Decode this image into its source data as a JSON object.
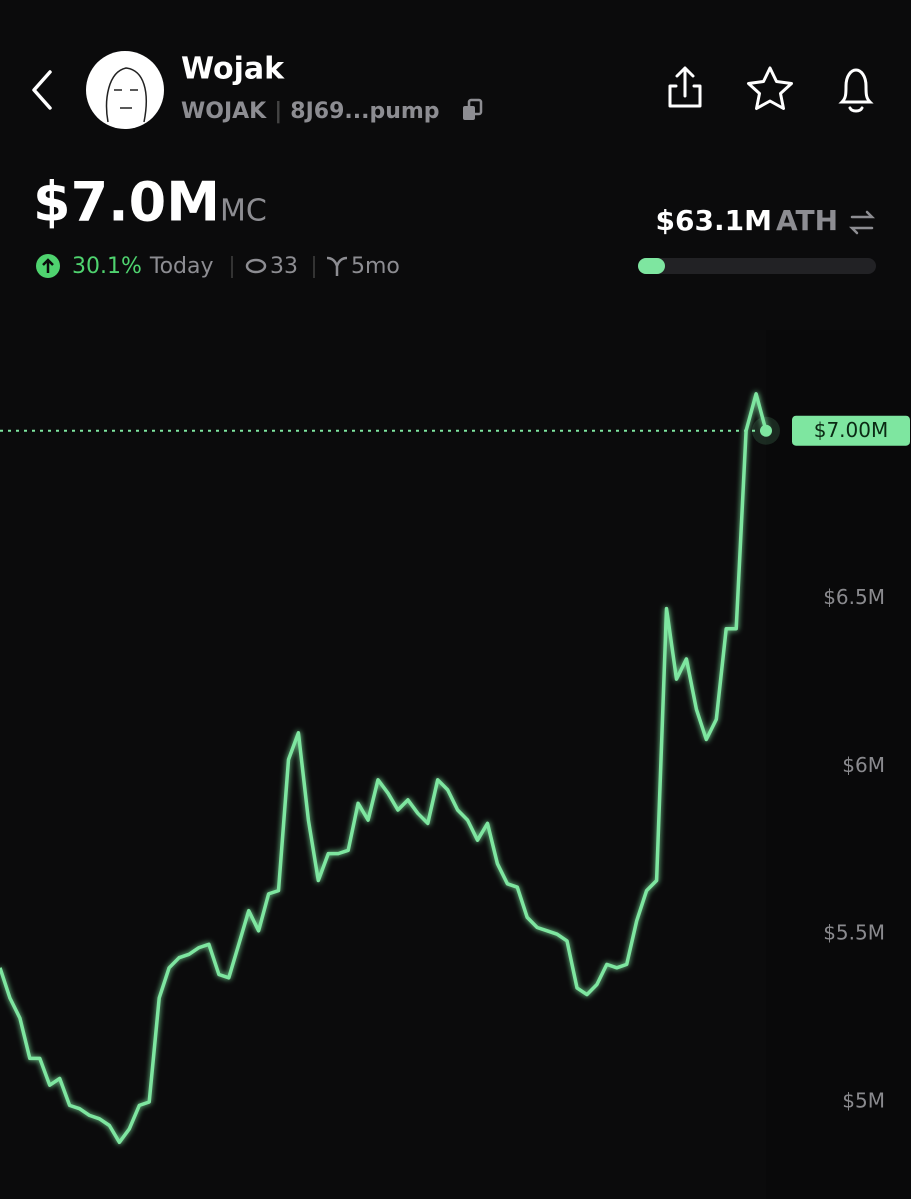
{
  "header": {
    "name": "Wojak",
    "ticker": "WOJAK",
    "separator": "|",
    "address": "8J69...pump"
  },
  "stats": {
    "market_cap": "$7.0M",
    "market_cap_unit": "MC",
    "change": "30.1%",
    "change_period": "Today",
    "watchers": "33",
    "age": "5mo",
    "ath": "$63.1M",
    "ath_label": "ATH"
  },
  "chart_data": {
    "type": "line",
    "series": [
      {
        "name": "Market cap",
        "color": "#7ee6a0",
        "values": [
          5.4,
          5.31,
          5.25,
          5.13,
          5.13,
          5.05,
          5.07,
          4.99,
          4.98,
          4.96,
          4.95,
          4.93,
          4.88,
          4.92,
          4.99,
          5.0,
          5.31,
          5.4,
          5.43,
          5.44,
          5.46,
          5.47,
          5.38,
          5.37,
          5.47,
          5.57,
          5.51,
          5.62,
          5.63,
          6.02,
          6.1,
          5.84,
          5.66,
          5.74,
          5.74,
          5.75,
          5.89,
          5.84,
          5.96,
          5.92,
          5.87,
          5.9,
          5.86,
          5.83,
          5.96,
          5.93,
          5.87,
          5.84,
          5.78,
          5.83,
          5.71,
          5.65,
          5.64,
          5.55,
          5.52,
          5.51,
          5.5,
          5.48,
          5.34,
          5.32,
          5.35,
          5.41,
          5.4,
          5.41,
          5.54,
          5.63,
          5.66,
          6.47,
          6.26,
          6.32,
          6.17,
          6.08,
          6.14,
          6.41,
          6.41,
          7.0,
          7.11,
          7.0
        ]
      }
    ],
    "ylim": [
      4.72,
      7.3
    ],
    "yticks": [
      {
        "value": 5,
        "label": "$5M"
      },
      {
        "value": 5.5,
        "label": "$5.5M"
      },
      {
        "value": 6,
        "label": "$6M"
      },
      {
        "value": 6.5,
        "label": "$6.5M"
      }
    ],
    "current_value": 7.0,
    "current_label": "$7.00M"
  }
}
